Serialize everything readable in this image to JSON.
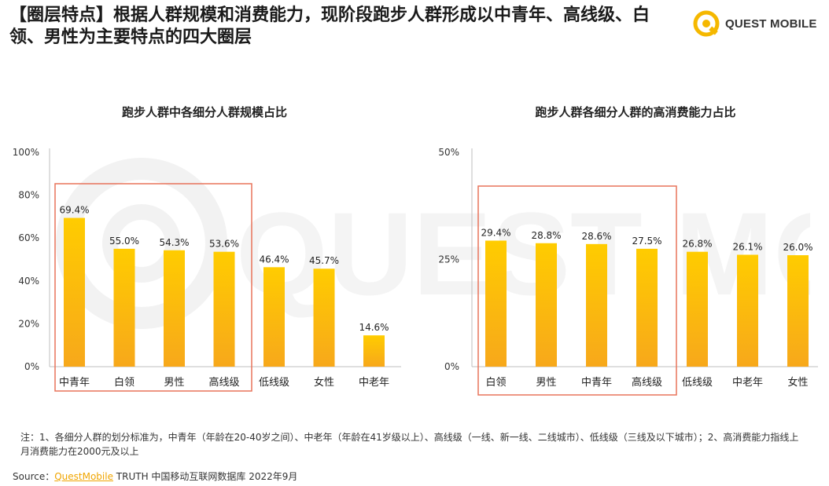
{
  "headline": "【圈层特点】根据人群规模和消费能力，现阶段跑步人群形成以中青年、高线级、白领、男性为主要特点的四大圈层",
  "logo": {
    "text": "QUEST MOBILE",
    "icon": "quest-mobile-logo-icon",
    "color": "#f5b800"
  },
  "colors": {
    "bar_top": "#ffcc00",
    "bar_bottom": "#f7a81b",
    "highlight_box": "#e8735a",
    "axis": "#bfbfbf"
  },
  "chart_data": [
    {
      "type": "bar",
      "title": "跑步人群中各细分人群规模占比",
      "categories": [
        "中青年",
        "白领",
        "男性",
        "高线级",
        "低线级",
        "女性",
        "中老年"
      ],
      "values": [
        69.4,
        55.0,
        54.3,
        53.6,
        46.4,
        45.7,
        14.6
      ],
      "value_labels": [
        "69.4%",
        "55.0%",
        "54.3%",
        "53.6%",
        "46.4%",
        "45.7%",
        "14.6%"
      ],
      "yticks": [
        "0%",
        "20%",
        "40%",
        "60%",
        "80%",
        "100%"
      ],
      "ylim": [
        0,
        100
      ],
      "highlight_range": [
        0,
        3
      ]
    },
    {
      "type": "bar",
      "title": "跑步人群各细分人群的高消费能力占比",
      "categories": [
        "白领",
        "男性",
        "中青年",
        "高线级",
        "低线级",
        "中老年",
        "女性"
      ],
      "values": [
        29.4,
        28.8,
        28.6,
        27.5,
        26.8,
        26.1,
        26.0
      ],
      "value_labels": [
        "29.4%",
        "28.8%",
        "28.6%",
        "27.5%",
        "26.8%",
        "26.1%",
        "26.0%"
      ],
      "yticks": [
        "0%",
        "25%",
        "50%"
      ],
      "ylim": [
        0,
        50
      ],
      "highlight_range": [
        0,
        3
      ]
    }
  ],
  "note": "注：1、各细分人群的划分标准为，中青年（年龄在20-40岁之间）、中老年（年龄在41岁级以上）、高线级（一线、新一线、二线城市）、低线级（三线及以下城市）；2、高消费能力指线上月消费能力在2000元及以上",
  "source": {
    "prefix": "Source：",
    "brand": "QuestMobile",
    "suffix": " TRUTH 中国移动互联网数据库 2022年9月"
  }
}
